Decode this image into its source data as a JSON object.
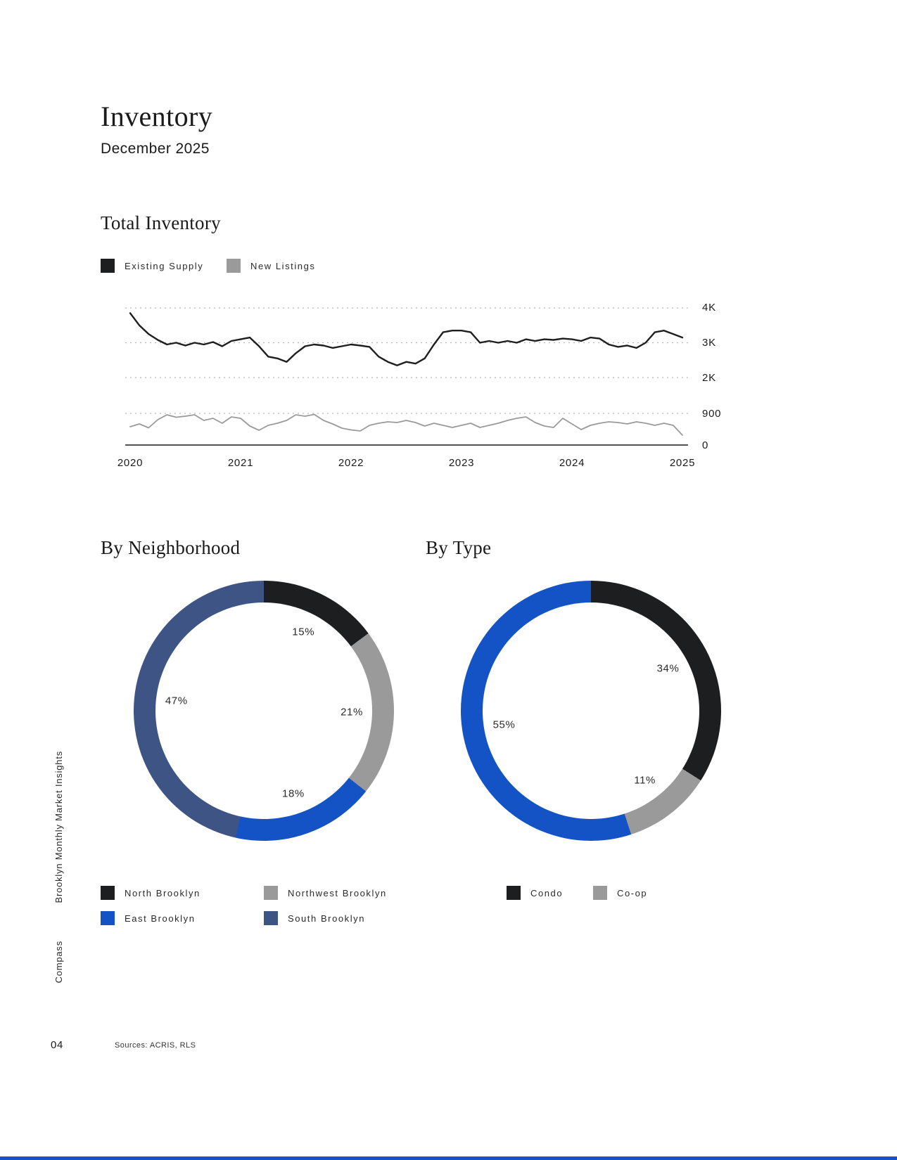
{
  "page": {
    "title": "Inventory",
    "subtitle": "December 2025",
    "sidebar_label": "Brooklyn Monthly Market Insights",
    "brand": "Compass",
    "page_number": "04",
    "sources": "Sources: ACRIS, RLS"
  },
  "sections": {
    "total_inventory_heading": "Total Inventory",
    "by_neighborhood_heading": "By Neighborhood",
    "by_type_heading": "By Type"
  },
  "colors": {
    "black": "#1d1e20",
    "gray": "#9a9a9a",
    "blue": "#1353c5",
    "slate": "#3e5484",
    "grid": "#b9b9b9",
    "axis": "#1a1a1a"
  },
  "chart_data": [
    {
      "type": "line",
      "title": "Total Inventory",
      "x_ticks": [
        "2020",
        "2021",
        "2022",
        "2023",
        "2024",
        "2025"
      ],
      "y_tick_labels": [
        "4K",
        "3K",
        "2K",
        "900",
        "0"
      ],
      "upper_axis": {
        "min": 2000,
        "max": 4000,
        "gridlines": [
          4000,
          3000,
          2000
        ]
      },
      "lower_axis": {
        "min": 0,
        "max": 900,
        "gridlines": [
          900
        ]
      },
      "grid": "dashed",
      "legend_position": "top-left",
      "series": [
        {
          "name": "Existing Supply",
          "axis": "upper",
          "color": "#1d1e20",
          "values": [
            3850,
            3500,
            3250,
            3080,
            2950,
            3000,
            2920,
            3000,
            2950,
            3020,
            2900,
            3050,
            3100,
            3150,
            2900,
            2600,
            2550,
            2450,
            2700,
            2900,
            2950,
            2920,
            2850,
            2900,
            2950,
            2920,
            2880,
            2600,
            2450,
            2350,
            2450,
            2400,
            2550,
            2950,
            3300,
            3350,
            3350,
            3300,
            3000,
            3050,
            3000,
            3050,
            3000,
            3100,
            3050,
            3100,
            3080,
            3120,
            3100,
            3050,
            3150,
            3120,
            2950,
            2880,
            2920,
            2850,
            3000,
            3300,
            3350,
            3250,
            3150
          ]
        },
        {
          "name": "New Listings",
          "axis": "lower",
          "color": "#9a9a9a",
          "values": [
            520,
            600,
            490,
            720,
            860,
            790,
            820,
            860,
            700,
            760,
            620,
            800,
            760,
            540,
            420,
            560,
            620,
            700,
            860,
            820,
            870,
            700,
            600,
            480,
            430,
            400,
            560,
            620,
            660,
            640,
            700,
            640,
            540,
            620,
            560,
            500,
            560,
            620,
            500,
            560,
            620,
            700,
            760,
            800,
            640,
            540,
            500,
            760,
            600,
            440,
            560,
            620,
            660,
            640,
            600,
            660,
            620,
            560,
            620,
            560,
            280
          ]
        }
      ]
    },
    {
      "type": "pie",
      "title": "By Neighborhood",
      "donut": true,
      "segments": [
        {
          "label": "North Brooklyn",
          "pct": 15,
          "color": "#1d1e20"
        },
        {
          "label": "Northwest Brooklyn",
          "pct": 21,
          "color": "#9a9a9a"
        },
        {
          "label": "East Brooklyn",
          "pct": 18,
          "color": "#1353c5"
        },
        {
          "label": "South Brooklyn",
          "pct": 47,
          "color": "#3e5484"
        }
      ]
    },
    {
      "type": "pie",
      "title": "By Type",
      "donut": true,
      "segments": [
        {
          "label": "Condo",
          "pct": 34,
          "color": "#1d1e20"
        },
        {
          "label": "Co-op",
          "pct": 11,
          "color": "#9a9a9a"
        },
        {
          "label": "",
          "pct": 55,
          "color": "#1353c5"
        }
      ]
    }
  ]
}
